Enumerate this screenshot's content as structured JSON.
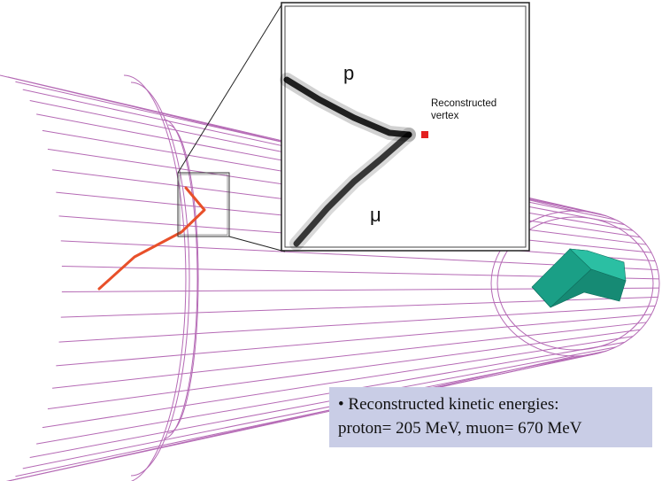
{
  "colors": {
    "wireframe": "#b56ab5",
    "track": "#e8502a",
    "arrow": "#1a9f86",
    "vertex_marker": "#e32020",
    "info_box_bg": "#c9cde6"
  },
  "inset": {
    "label_proton": "p",
    "label_muon": "μ",
    "vertex_label_line1": "Reconstructed",
    "vertex_label_line2": "vertex"
  },
  "info_box": {
    "line1": "• Reconstructed kinetic energies:",
    "line2": "proton= 205 MeV, muon= 670 MeV"
  },
  "icons": {
    "beam_direction": "beam-arrow-icon"
  }
}
